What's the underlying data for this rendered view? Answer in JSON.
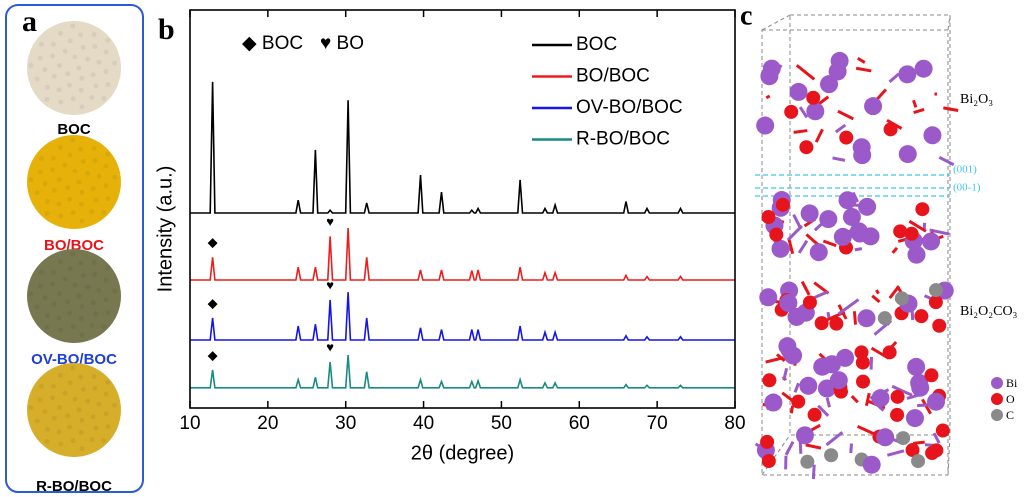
{
  "panels": {
    "a": {
      "letter": "a",
      "samples": [
        {
          "label": "BOC",
          "color": "#000000",
          "swatch": "#e4dac6"
        },
        {
          "label": "BO/BOC",
          "color": "#e8141b",
          "swatch": "#e6b20a"
        },
        {
          "label": "OV-BO/BOC",
          "color": "#1f3fd6",
          "swatch": "#77784f"
        },
        {
          "label": "R-BO/BOC",
          "color": "#000000",
          "swatch": "#d6ae2a"
        }
      ]
    },
    "c": {
      "letter": "c",
      "labels": {
        "top": "Bi₂O₃",
        "bottom": "Bi₂O₂CO₃",
        "plane1": "(001)",
        "plane2": "(00-1)"
      },
      "atom_legend": [
        {
          "label": "Bi",
          "color": "#9b59c9"
        },
        {
          "label": "O",
          "color": "#e8141b"
        },
        {
          "label": "C",
          "color": "#8a8a8a"
        }
      ]
    }
  },
  "chart_data": {
    "type": "line",
    "letter": "b",
    "x_label": "2θ (degree)",
    "y_label": "Intensity (a.u.)",
    "xlim": [
      10,
      80
    ],
    "xticks": [
      10,
      20,
      30,
      40,
      50,
      60,
      70,
      80
    ],
    "ylim": [
      -3.2,
      110.9
    ],
    "annotations": [
      "◆ BOC",
      "♥ BO"
    ],
    "peak_markers": [
      {
        "symbol": "◆",
        "x": 12.9,
        "series": 1
      },
      {
        "symbol": "◆",
        "x": 12.9,
        "series": 2
      },
      {
        "symbol": "◆",
        "x": 12.9,
        "series": 3
      },
      {
        "symbol": "♥",
        "x": 28.0,
        "series": 1
      },
      {
        "symbol": "♥",
        "x": 28.0,
        "series": 2
      },
      {
        "symbol": "♥",
        "x": 28.0,
        "series": 3
      }
    ],
    "x": [
      10,
      12.6,
      12.9,
      13.2,
      23.6,
      23.9,
      24.2,
      25.8,
      26.1,
      26.4,
      27.7,
      28.0,
      28.3,
      30.0,
      30.3,
      30.6,
      32.4,
      32.7,
      33.0,
      39.3,
      39.6,
      39.9,
      42.0,
      42.3,
      42.6,
      45.9,
      46.2,
      46.5,
      46.7,
      47.0,
      47.3,
      52.1,
      52.4,
      52.7,
      55.3,
      55.6,
      55.9,
      56.6,
      56.9,
      57.2,
      65.7,
      66.0,
      66.3,
      68.4,
      68.7,
      69.0,
      72.7,
      73.0,
      73.3,
      80
    ],
    "series": [
      {
        "name": "BOC",
        "color": "#000000",
        "values": [
          52.7,
          52.7,
          90.3,
          52.7,
          52.7,
          56.4,
          52.7,
          52.7,
          70.8,
          52.7,
          52.7,
          53.5,
          52.7,
          52.7,
          85,
          52.7,
          52.7,
          55.6,
          52.7,
          52.7,
          63.6,
          52.7,
          52.7,
          58.7,
          52.7,
          52.7,
          53.5,
          52.7,
          52.7,
          54,
          52.7,
          52.7,
          62.2,
          52.7,
          52.7,
          54,
          52.7,
          52.7,
          55,
          52.7,
          52.7,
          56,
          52.7,
          52.7,
          54,
          52.7,
          52.7,
          54,
          52.7,
          52.7
        ]
      },
      {
        "name": "BO/BOC",
        "color": "#ee1c1c",
        "values": [
          33.5,
          33.5,
          40,
          33.5,
          33.5,
          37.2,
          33.5,
          33.5,
          37.2,
          33.5,
          33.5,
          46,
          33.5,
          33.5,
          48.4,
          33.5,
          33.5,
          40,
          33.5,
          33.5,
          36.4,
          33.5,
          33.5,
          36.4,
          33.5,
          33.5,
          36.2,
          33.5,
          33.5,
          36.4,
          33.5,
          33.5,
          37.2,
          33.5,
          33.5,
          35.6,
          33.5,
          33.5,
          35.6,
          33.5,
          33.5,
          34.8,
          33.5,
          33.5,
          34.5,
          33.5,
          33.5,
          34.5,
          33.5,
          33.5
        ]
      },
      {
        "name": "OV-BO/BOC",
        "color": "#1515e8",
        "values": [
          16.3,
          16.3,
          22.6,
          16.3,
          16.3,
          20.3,
          16.3,
          16.3,
          20.8,
          16.3,
          16.3,
          27.8,
          16.3,
          16.3,
          30,
          16.3,
          16.3,
          22.6,
          16.3,
          16.3,
          19.8,
          16.3,
          16.3,
          19.3,
          16.3,
          16.3,
          19.3,
          16.3,
          16.3,
          19.3,
          16.3,
          16.3,
          20.3,
          16.3,
          16.3,
          18.5,
          16.3,
          16.3,
          18.5,
          16.3,
          16.3,
          17.5,
          16.3,
          16.3,
          17.2,
          16.3,
          16.3,
          17.2,
          16.3,
          16.3
        ]
      },
      {
        "name": "R-BO/BOC",
        "color": "#1a8a84",
        "values": [
          2.6,
          2.6,
          7.7,
          2.6,
          2.6,
          4.9,
          2.6,
          2.6,
          5.6,
          2.6,
          2.6,
          10,
          2.6,
          2.6,
          12,
          2.6,
          2.6,
          7.2,
          2.6,
          2.6,
          4.9,
          2.6,
          2.6,
          4.4,
          2.6,
          2.6,
          4.4,
          2.6,
          2.6,
          4.6,
          2.6,
          2.6,
          4.9,
          2.6,
          2.6,
          4,
          2.6,
          2.6,
          4,
          2.6,
          2.6,
          3.5,
          2.6,
          2.6,
          3.3,
          2.6,
          2.6,
          3.3,
          2.6,
          2.6
        ]
      }
    ]
  }
}
